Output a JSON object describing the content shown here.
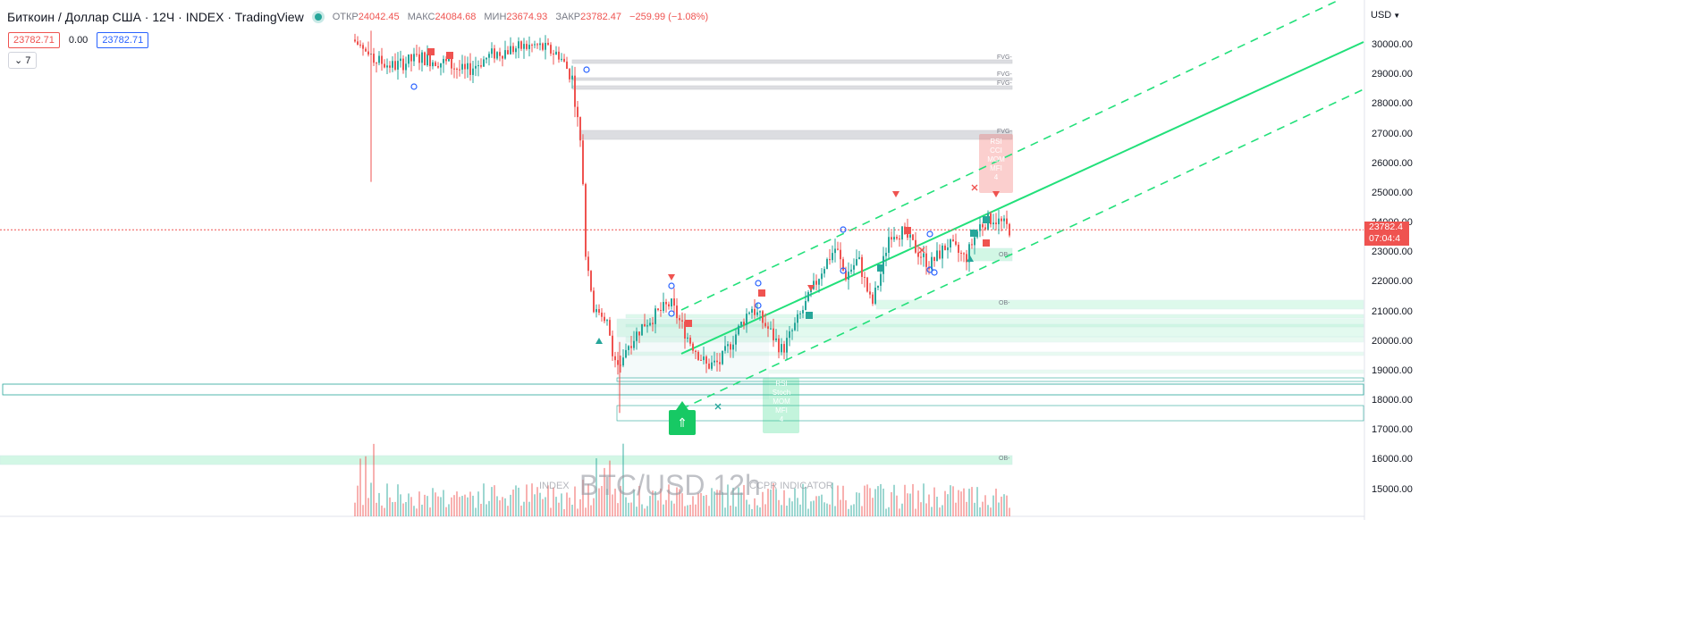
{
  "header": {
    "symbol": "Биткоин / Доллар США · 12Ч · INDEX · TradingView",
    "ohlc": {
      "open_label": "ОТКР",
      "open": "24042.45",
      "high_label": "МАКС",
      "high": "24084.68",
      "low_label": "МИН",
      "low": "23674.93",
      "close_label": "ЗАКР",
      "close": "23782.47",
      "change": "−259.99 (−1.08%)"
    },
    "sell_price": "23782.71",
    "spread": "0.00",
    "buy_price": "23782.71",
    "collapse_count": "7"
  },
  "axis": {
    "currency": "USD",
    "ticks": [
      "30000.00",
      "29000.00",
      "28000.00",
      "27000.00",
      "26000.00",
      "25000.00",
      "24000.00",
      "23000.00",
      "22000.00",
      "21000.00",
      "20000.00",
      "19000.00",
      "18000.00",
      "17000.00",
      "16000.00",
      "15000.00"
    ],
    "last_price": "23782.4",
    "countdown": "07:04:4"
  },
  "overlay": {
    "watermark": "BTC/USD 12h",
    "left_note": "INDEX",
    "right_note": "CCPR INDICATOR",
    "fvg_label": "FVG-",
    "ob_label": "OB-",
    "green_signal": [
      "RSI",
      "Stoch",
      "MOM",
      "MFI",
      "4"
    ],
    "red_signal": [
      "RSI",
      "CCI",
      "MOM",
      "MFI",
      "4"
    ],
    "buy_icon": "⇑"
  },
  "colors": {
    "up": "#26a69a",
    "down": "#ef5350",
    "channel": "#22e07a",
    "price_line": "#ef5350",
    "accent_blue": "#2962ff"
  }
}
